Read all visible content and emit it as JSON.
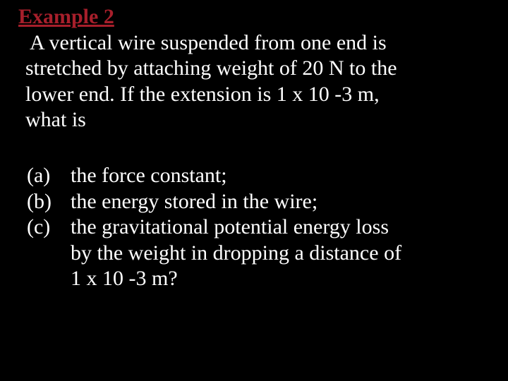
{
  "title": "Example 2",
  "intro": {
    "line1": "A vertical wire suspended from one end is",
    "line2": "stretched by attaching weight of 20 N to the",
    "line3": "lower end. If the extension is 1 x 10 -3 m,",
    "line4": "what is"
  },
  "items": {
    "a": {
      "marker": "(a)",
      "text": "the force constant;"
    },
    "b": {
      "marker": "(b)",
      "text": "the energy stored in the wire;"
    },
    "c": {
      "marker": "(c)",
      "line1": "the gravitational potential energy loss",
      "line2": " by the weight in dropping a distance of",
      "line3": " 1 x 10 -3 m?"
    }
  },
  "colors": {
    "background": "#000000",
    "text": "#ffffff",
    "title": "#a71f2b"
  },
  "font": {
    "family": "Times New Roman",
    "size_pt": 30
  }
}
